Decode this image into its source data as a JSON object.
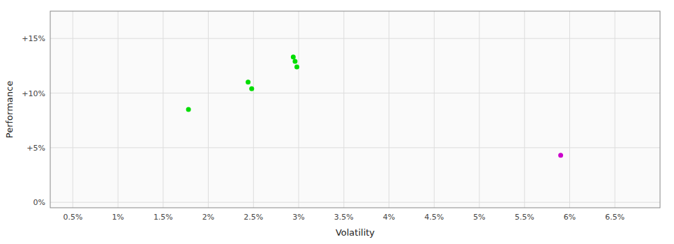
{
  "chart_data": {
    "type": "scatter",
    "xlabel": "Volatility",
    "ylabel": "Performance",
    "xlim": [
      0.0025,
      0.07
    ],
    "ylim": [
      -0.005,
      0.175
    ],
    "xticks": [
      {
        "value": 0.005,
        "label": "0.5%"
      },
      {
        "value": 0.01,
        "label": "1%"
      },
      {
        "value": 0.015,
        "label": "1.5%"
      },
      {
        "value": 0.02,
        "label": "2%"
      },
      {
        "value": 0.025,
        "label": "2.5%"
      },
      {
        "value": 0.03,
        "label": "3%"
      },
      {
        "value": 0.035,
        "label": "3.5%"
      },
      {
        "value": 0.04,
        "label": "4%"
      },
      {
        "value": 0.045,
        "label": "4.5%"
      },
      {
        "value": 0.05,
        "label": "5%"
      },
      {
        "value": 0.055,
        "label": "5.5%"
      },
      {
        "value": 0.06,
        "label": "6%"
      },
      {
        "value": 0.065,
        "label": "6.5%"
      }
    ],
    "yticks": [
      {
        "value": 0.0,
        "label": "0%"
      },
      {
        "value": 0.05,
        "label": "+5%"
      },
      {
        "value": 0.1,
        "label": "+10%"
      },
      {
        "value": 0.15,
        "label": "+15%"
      }
    ],
    "grid": true,
    "series": [
      {
        "color": "#00dd00",
        "x": [
          0.0178,
          0.0244,
          0.0248,
          0.0294,
          0.0296,
          0.0298
        ],
        "values": [
          0.085,
          0.11,
          0.104,
          0.133,
          0.129,
          0.124
        ]
      },
      {
        "color": "#cc00cc",
        "x": [
          0.059
        ],
        "values": [
          0.043
        ]
      }
    ]
  }
}
